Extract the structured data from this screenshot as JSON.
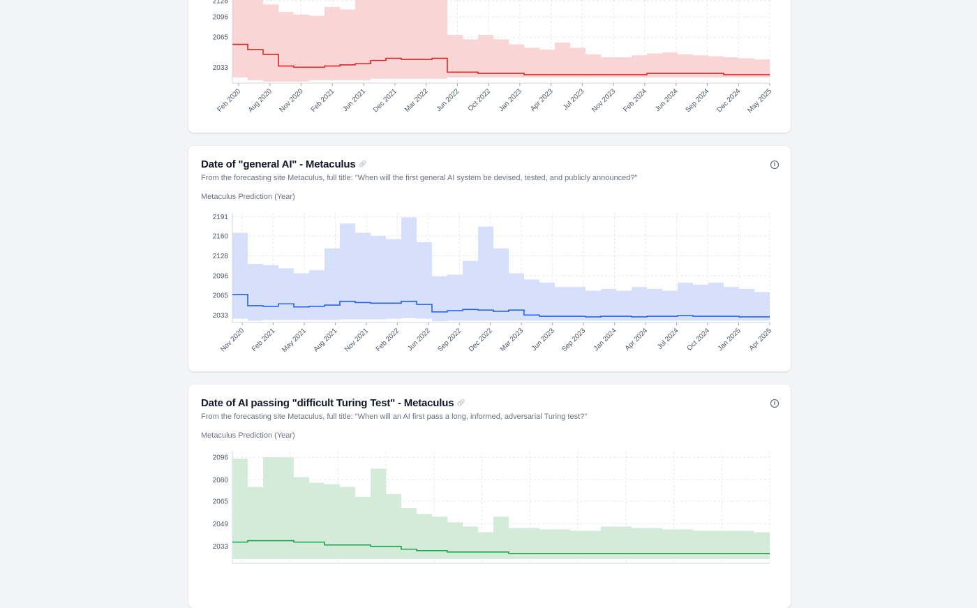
{
  "cards": [
    {
      "chart_data": {
        "type": "area",
        "yscale": "log",
        "ylim": [
          2021,
          2150
        ],
        "yticks": [
          2033,
          2065,
          2096,
          2128
        ],
        "xticks": [
          "Feb 2020",
          "Aug 2020",
          "Nov 2020",
          "Feb 2021",
          "Jun 2021",
          "Dec 2021",
          "Mar 2022",
          "Jun 2022",
          "Oct 2022",
          "Jan 2023",
          "Apr 2023",
          "Jul 2023",
          "Nov 2023",
          "Feb 2024",
          "Jun 2024",
          "Sep 2024",
          "Dec 2024",
          "May 2025"
        ],
        "grid": true,
        "color": "#dc2626",
        "fill": "#fad5d5",
        "median": [
          2056,
          2050,
          2045,
          2034,
          2033,
          2033,
          2034,
          2035,
          2036,
          2039,
          2041,
          2040,
          2040,
          2041,
          2029,
          2029,
          2028,
          2028,
          2028,
          2027,
          2027,
          2027,
          2027,
          2027,
          2027,
          2027,
          2027,
          2028,
          2028,
          2028,
          2028,
          2028,
          2027,
          2027,
          2027,
          2027
        ],
        "upper": [
          2200,
          2200,
          2120,
          2105,
          2100,
          2098,
          2115,
          2110,
          2200,
          2200,
          2200,
          2200,
          2200,
          2200,
          2068,
          2062,
          2068,
          2062,
          2056,
          2052,
          2050,
          2058,
          2052,
          2045,
          2042,
          2042,
          2044,
          2046,
          2047,
          2045,
          2044,
          2043,
          2042,
          2041,
          2040,
          2039
        ],
        "lower": [
          2025,
          2023,
          2022,
          2022,
          2022,
          2023,
          2023,
          2023,
          2023,
          2024,
          2024,
          2024,
          2024,
          2024,
          2025,
          2025,
          2025,
          2025,
          2025,
          2025,
          2025,
          2025,
          2025,
          2025,
          2025,
          2025,
          2025,
          2025,
          2025,
          2025,
          2025,
          2025,
          2025,
          2025,
          2025,
          2025
        ]
      }
    },
    {
      "title": "Date of \"general AI\" - Metaculus",
      "subtitle": "From the forecasting site Metaculus, full title: \"When will the first general AI system be devised, tested, and publicly announced?\"",
      "ylabel": "Metaculus Prediction (Year)",
      "chart_data": {
        "type": "area",
        "yscale": "linear",
        "ylim": [
          2021,
          2197
        ],
        "yticks": [
          2033,
          2065,
          2096,
          2128,
          2160,
          2191
        ],
        "xticks": [
          "Nov 2020",
          "Feb 2021",
          "May 2021",
          "Aug 2021",
          "Nov 2021",
          "Feb 2022",
          "Jun 2022",
          "Sep 2022",
          "Dec 2022",
          "Mar 2023",
          "Jun 2023",
          "Sep 2023",
          "Jan 2024",
          "Apr 2024",
          "Jul 2024",
          "Oct 2024",
          "Jan 2025",
          "Apr 2025"
        ],
        "grid": true,
        "color": "#2563eb",
        "fill": "#d6e0fa",
        "median": [
          2066,
          2048,
          2047,
          2051,
          2046,
          2047,
          2049,
          2055,
          2053,
          2052,
          2052,
          2055,
          2050,
          2038,
          2040,
          2042,
          2041,
          2039,
          2041,
          2033,
          2031,
          2031,
          2031,
          2030,
          2031,
          2031,
          2030,
          2031,
          2031,
          2032,
          2031,
          2031,
          2031,
          2030,
          2030,
          2032
        ],
        "upper": [
          2165,
          2115,
          2113,
          2108,
          2100,
          2105,
          2140,
          2180,
          2165,
          2160,
          2155,
          2190,
          2150,
          2095,
          2098,
          2120,
          2175,
          2140,
          2100,
          2090,
          2085,
          2078,
          2078,
          2072,
          2075,
          2072,
          2078,
          2075,
          2072,
          2085,
          2082,
          2085,
          2078,
          2075,
          2070,
          2080
        ],
        "lower": [
          2027,
          2024,
          2025,
          2025,
          2025,
          2025,
          2025,
          2026,
          2026,
          2026,
          2027,
          2028,
          2027,
          2023,
          2024,
          2024,
          2024,
          2024,
          2024,
          2024,
          2024,
          2024,
          2024,
          2024,
          2024,
          2024,
          2024,
          2024,
          2024,
          2024,
          2024,
          2024,
          2024,
          2024,
          2024,
          2024
        ]
      }
    },
    {
      "title": "Date of AI passing \"difficult Turing Test\" - Metaculus",
      "subtitle": "From the forecasting site Metaculus, full title: \"When will an AI first pass a long, informed, adversarial Turing test?\"",
      "ylabel": "Metaculus Prediction (Year)",
      "chart_data": {
        "type": "area",
        "yscale": "linear",
        "ylim": [
          2021,
          2100
        ],
        "yticks": [
          2033,
          2049,
          2065,
          2080,
          2096
        ],
        "xticks": [],
        "grid": true,
        "color": "#16a34a",
        "fill": "#d5ebd9",
        "median": [
          2036,
          2037,
          2037,
          2037,
          2036,
          2036,
          2034,
          2034,
          2034,
          2033,
          2033,
          2031,
          2030,
          2030,
          2029,
          2029,
          2029,
          2029,
          2028,
          2028,
          2028,
          2028,
          2028,
          2028,
          2028,
          2028,
          2028,
          2028,
          2028,
          2028,
          2028,
          2028,
          2028,
          2028,
          2028,
          2028
        ],
        "upper": [
          2095,
          2075,
          2096,
          2096,
          2082,
          2078,
          2077,
          2075,
          2068,
          2088,
          2070,
          2060,
          2056,
          2054,
          2050,
          2047,
          2043,
          2054,
          2046,
          2046,
          2045,
          2045,
          2044,
          2044,
          2047,
          2047,
          2046,
          2046,
          2045,
          2045,
          2044,
          2044,
          2044,
          2044,
          2043,
          2043
        ],
        "lower": [
          2024,
          2024,
          2024,
          2024,
          2024,
          2024,
          2024,
          2024,
          2024,
          2024,
          2024,
          2024,
          2024,
          2024,
          2024,
          2024,
          2024,
          2024,
          2024,
          2024,
          2024,
          2024,
          2024,
          2024,
          2024,
          2024,
          2024,
          2024,
          2024,
          2024,
          2024,
          2024,
          2024,
          2024,
          2024,
          2024
        ]
      }
    }
  ],
  "icons": {
    "link": "link-icon",
    "info": "info-icon"
  }
}
